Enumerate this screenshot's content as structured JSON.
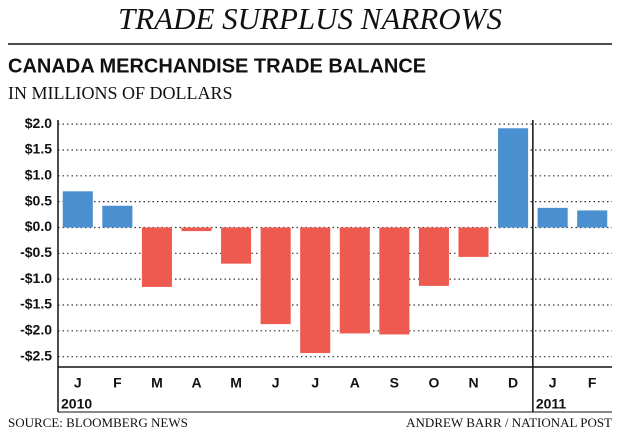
{
  "headline": "TRADE SURPLUS NARROWS",
  "chart_data": {
    "type": "bar",
    "title": "CANADA MERCHANDISE TRADE BALANCE",
    "subtitle": "IN MILLIONS OF DOLLARS",
    "categories": [
      "J",
      "F",
      "M",
      "A",
      "M",
      "J",
      "J",
      "A",
      "S",
      "O",
      "N",
      "D",
      "J",
      "F"
    ],
    "values": [
      0.7,
      0.42,
      -1.15,
      -0.07,
      -0.7,
      -1.87,
      -2.43,
      -2.05,
      -2.07,
      -1.13,
      -0.57,
      1.92,
      0.38,
      0.33
    ],
    "positive_color": "#4a8fd0",
    "negative_color": "#ef5a50",
    "ylim": [
      -2.7,
      2.08
    ],
    "yticks": [
      {
        "value": 2,
        "label": "$2.0"
      },
      {
        "value": 1.5,
        "label": "$1.5"
      },
      {
        "value": 1,
        "label": "$1.0"
      },
      {
        "value": 0.5,
        "label": "$0.5"
      },
      {
        "value": 0,
        "label": "$0.0"
      },
      {
        "value": -0.5,
        "label": "-$0.5"
      },
      {
        "value": -1,
        "label": "-$1.0"
      },
      {
        "value": -1.5,
        "label": "-$1.5"
      },
      {
        "value": -2,
        "label": "-$2.0"
      },
      {
        "value": -2.5,
        "label": "-$2.5"
      }
    ],
    "grid": true,
    "years": [
      {
        "label": "2010",
        "start": 0
      },
      {
        "label": "2011",
        "start": 12
      }
    ]
  },
  "source": "SOURCE: BLOOMBERG NEWS",
  "credit": "ANDREW BARR / NATIONAL POST"
}
